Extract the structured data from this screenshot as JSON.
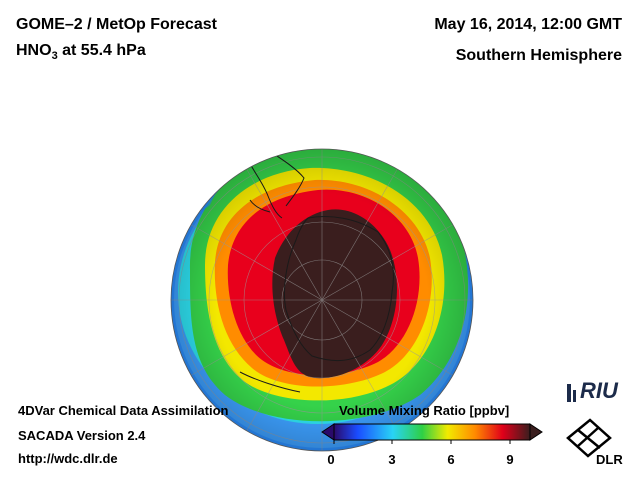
{
  "header": {
    "title_prefix": "GOME–2 / MetOp Forecast",
    "species_prefix": "HNO",
    "species_sub": "3",
    "species_suffix": " at 55.4 hPa",
    "datetime": "May 16, 2014, 12:00 GMT",
    "region": "Southern Hemisphere"
  },
  "footer": {
    "line1": "4DVar Chemical Data Assimilation",
    "line2": "SACADA Version 2.4",
    "url": "http://wdc.dlr.de"
  },
  "colorbar": {
    "title": "Volume Mixing Ratio [ppbv]",
    "ticks": [
      "0",
      "3",
      "6",
      "9"
    ],
    "min": 0,
    "max": 10
  },
  "logos": {
    "riu": "RIU",
    "dlr": "DLR"
  },
  "colors": {
    "low": "#3a1a8a",
    "blue": "#1e8cff",
    "cyan": "#2ee0f0",
    "green": "#2ecc40",
    "yellow": "#f5e600",
    "orange": "#ff8a00",
    "red": "#e8001c",
    "max": "#3a1e1e"
  }
}
